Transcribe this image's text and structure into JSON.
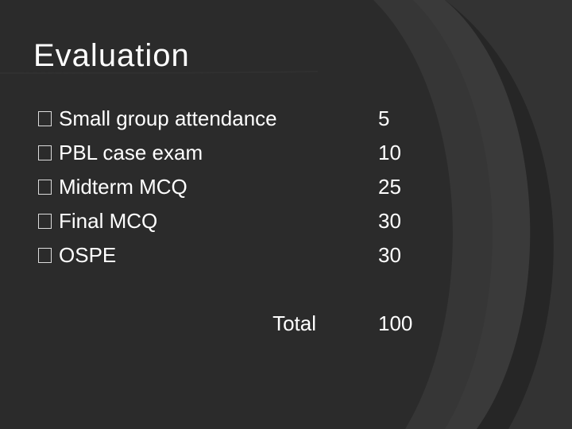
{
  "slide": {
    "title": "Evaluation",
    "items": [
      {
        "label": "Small group attendance",
        "value": "5"
      },
      {
        "label": "PBL case exam",
        "value": "10"
      },
      {
        "label": "Midterm MCQ",
        "value": "25"
      },
      {
        "label": "Final MCQ",
        "value": "30"
      },
      {
        "label": "OSPE",
        "value": "30"
      }
    ],
    "total": {
      "label": "Total",
      "value": "100"
    }
  },
  "colors": {
    "background": "#262626",
    "curve_band": "#3a3a3a",
    "text": "#ffffff"
  },
  "icons": {
    "bullet": "square-bullet-icon"
  }
}
